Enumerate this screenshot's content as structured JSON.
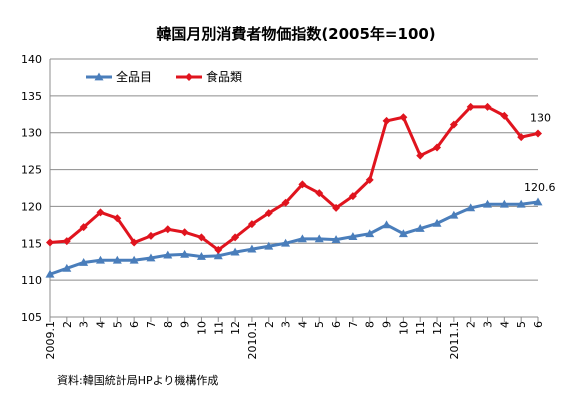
{
  "chart_data": {
    "type": "line",
    "title": "韓国月別消費者物価指数(2005年=100)",
    "xlabel": "",
    "ylabel": "",
    "ylim": [
      105,
      140
    ],
    "yticks": [
      "105",
      "110",
      "115",
      "120",
      "125",
      "130",
      "135",
      "140"
    ],
    "categories": [
      "2009.1",
      "2",
      "3",
      "4",
      "5",
      "6",
      "7",
      "8",
      "9",
      "10",
      "11",
      "12",
      "2010.1",
      "2",
      "3",
      "4",
      "5",
      "6",
      "7",
      "8",
      "9",
      "10",
      "11",
      "12",
      "2011.1",
      "2",
      "3",
      "4",
      "5",
      "6"
    ],
    "grid": true,
    "legend_position": "top-left",
    "series": [
      {
        "name": "全品目",
        "color": "#4a7ebb",
        "marker": "triangle",
        "values": [
          110.8,
          111.6,
          112.4,
          112.7,
          112.7,
          112.7,
          113.0,
          113.4,
          113.5,
          113.2,
          113.3,
          113.8,
          114.2,
          114.6,
          115.0,
          115.6,
          115.6,
          115.5,
          115.9,
          116.3,
          117.5,
          116.3,
          117.0,
          117.7,
          118.8,
          119.8,
          120.3,
          120.3,
          120.3,
          120.6
        ]
      },
      {
        "name": "食品類",
        "color": "#e0141e",
        "marker": "diamond",
        "values": [
          115.1,
          115.3,
          117.2,
          119.2,
          118.4,
          115.1,
          116.0,
          116.9,
          116.5,
          115.8,
          114.1,
          115.8,
          117.6,
          119.1,
          120.5,
          123.0,
          121.8,
          119.8,
          121.4,
          123.6,
          131.6,
          132.1,
          126.9,
          128.0,
          131.1,
          133.5,
          133.5,
          132.3,
          129.4,
          129.9
        ]
      }
    ],
    "annotations": [
      {
        "series": 1,
        "index": 29,
        "text": "130"
      },
      {
        "series": 0,
        "index": 29,
        "text": "120.6"
      }
    ],
    "source_note": "資料:韓国統計局HPより機構作成"
  }
}
